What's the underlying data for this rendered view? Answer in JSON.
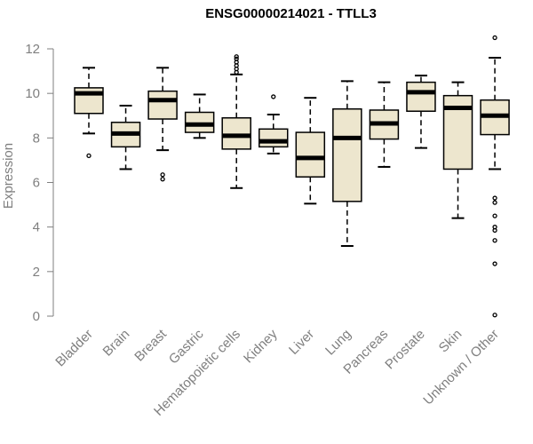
{
  "chart_data": {
    "type": "boxplot",
    "title": "ENSG00000214021 - TTLL3",
    "xlabel": "",
    "ylabel": "Expression",
    "ylim": [
      0,
      12
    ],
    "yticks": [
      0,
      2,
      4,
      6,
      8,
      10,
      12
    ],
    "box_fill": "#ede6ce",
    "categories": [
      "Bladder",
      "Brain",
      "Breast",
      "Gastric",
      "Hematopoietic cells",
      "Kidney",
      "Liver",
      "Lung",
      "Pancreas",
      "Prostate",
      "Skin",
      "Unknown / Other"
    ],
    "boxes": [
      {
        "category": "Bladder",
        "whisker_low": 8.2,
        "q1": 9.1,
        "median": 10.0,
        "q3": 10.25,
        "whisker_high": 11.15,
        "outliers": [
          7.2
        ]
      },
      {
        "category": "Brain",
        "whisker_low": 6.6,
        "q1": 7.6,
        "median": 8.2,
        "q3": 8.7,
        "whisker_high": 9.45,
        "outliers": []
      },
      {
        "category": "Breast",
        "whisker_low": 7.45,
        "q1": 8.85,
        "median": 9.7,
        "q3": 10.1,
        "whisker_high": 11.15,
        "outliers": [
          6.35,
          6.15
        ]
      },
      {
        "category": "Gastric",
        "whisker_low": 8.0,
        "q1": 8.25,
        "median": 8.6,
        "q3": 9.15,
        "whisker_high": 9.95,
        "outliers": []
      },
      {
        "category": "Hematopoietic cells",
        "whisker_low": 5.75,
        "q1": 7.5,
        "median": 8.1,
        "q3": 8.9,
        "whisker_high": 10.85,
        "outliers": [
          11.65,
          11.55,
          11.4,
          11.25,
          11.1,
          10.95
        ]
      },
      {
        "category": "Kidney",
        "whisker_low": 7.3,
        "q1": 7.6,
        "median": 7.85,
        "q3": 8.4,
        "whisker_high": 9.05,
        "outliers": [
          9.85
        ]
      },
      {
        "category": "Liver",
        "whisker_low": 5.05,
        "q1": 6.25,
        "median": 7.1,
        "q3": 8.25,
        "whisker_high": 9.8,
        "outliers": []
      },
      {
        "category": "Lung",
        "whisker_low": 3.15,
        "q1": 5.15,
        "median": 8.0,
        "q3": 9.3,
        "whisker_high": 10.55,
        "outliers": []
      },
      {
        "category": "Pancreas",
        "whisker_low": 6.7,
        "q1": 7.95,
        "median": 8.65,
        "q3": 9.25,
        "whisker_high": 10.5,
        "outliers": []
      },
      {
        "category": "Prostate",
        "whisker_low": 7.55,
        "q1": 9.2,
        "median": 10.05,
        "q3": 10.5,
        "whisker_high": 10.8,
        "outliers": []
      },
      {
        "category": "Skin",
        "whisker_low": 4.4,
        "q1": 6.6,
        "median": 9.35,
        "q3": 9.9,
        "whisker_high": 10.5,
        "outliers": []
      },
      {
        "category": "Unknown / Other",
        "whisker_low": 6.6,
        "q1": 8.15,
        "median": 9.0,
        "q3": 9.7,
        "whisker_high": 11.6,
        "outliers": [
          12.5,
          5.3,
          5.1,
          4.5,
          4.0,
          3.85,
          3.4,
          2.35,
          0.05
        ]
      }
    ]
  }
}
